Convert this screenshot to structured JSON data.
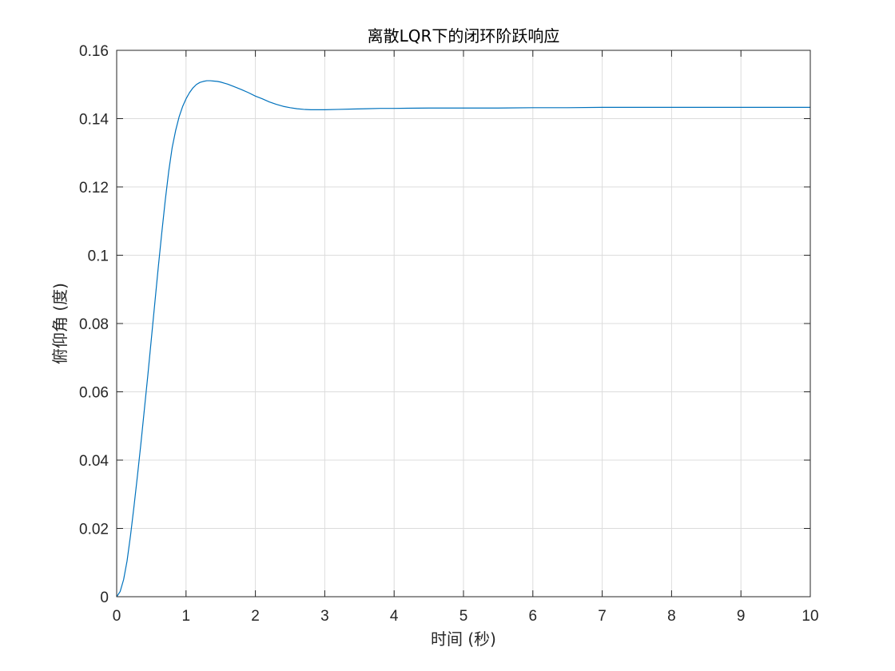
{
  "chart_data": {
    "type": "line",
    "title": "离散LQR下的闭环阶跃响应",
    "xlabel": "时间 (秒)",
    "ylabel": "俯仰角 (度)",
    "xlim": [
      0,
      10
    ],
    "ylim": [
      0,
      0.16
    ],
    "xticks": [
      "0",
      "1",
      "2",
      "3",
      "4",
      "5",
      "6",
      "7",
      "8",
      "9",
      "10"
    ],
    "yticks": [
      "0",
      "0.02",
      "0.04",
      "0.06",
      "0.08",
      "0.1",
      "0.12",
      "0.14",
      "0.16"
    ],
    "grid": true,
    "line_color": "#0072BD",
    "series": [
      {
        "x": [
          0,
          0.05,
          0.1,
          0.15,
          0.2,
          0.25,
          0.3,
          0.35,
          0.4,
          0.45,
          0.5,
          0.55,
          0.6,
          0.65,
          0.7,
          0.75,
          0.8,
          0.85,
          0.9,
          0.95,
          1.0,
          1.05,
          1.1,
          1.15,
          1.2,
          1.25,
          1.3,
          1.35,
          1.4,
          1.45,
          1.5,
          1.55,
          1.6,
          1.7,
          1.8,
          1.9,
          2.0,
          2.1,
          2.2,
          2.3,
          2.4,
          2.5,
          2.6,
          2.7,
          2.8,
          2.9,
          3.0,
          3.2,
          3.4,
          3.6,
          3.8,
          4.0,
          4.5,
          5.0,
          5.5,
          6.0,
          6.5,
          7.0,
          7.5,
          8.0,
          8.5,
          9.0,
          9.5,
          10.0
        ],
        "values": [
          0,
          0.0015,
          0.005,
          0.0105,
          0.018,
          0.0265,
          0.0355,
          0.045,
          0.055,
          0.065,
          0.0755,
          0.086,
          0.0965,
          0.1065,
          0.116,
          0.1245,
          0.1315,
          0.1365,
          0.1405,
          0.1435,
          0.1458,
          0.1476,
          0.149,
          0.15,
          0.1506,
          0.1509,
          0.1511,
          0.1511,
          0.151,
          0.1509,
          0.1507,
          0.1504,
          0.1501,
          0.1493,
          0.1485,
          0.1476,
          0.1466,
          0.1458,
          0.1449,
          0.1442,
          0.1436,
          0.1432,
          0.1429,
          0.1427,
          0.1426,
          0.1426,
          0.1426,
          0.1427,
          0.1428,
          0.1429,
          0.143,
          0.143,
          0.1431,
          0.1431,
          0.1431,
          0.1432,
          0.1432,
          0.1433,
          0.1433,
          0.1433,
          0.1433,
          0.1433,
          0.1433,
          0.1433
        ]
      }
    ]
  }
}
